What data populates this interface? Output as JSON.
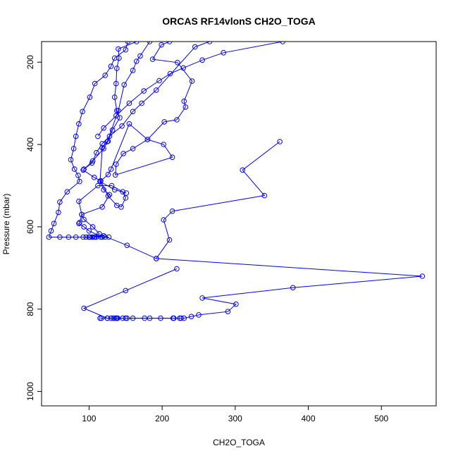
{
  "chart_data": {
    "type": "line",
    "title": "ORCAS RF14vlonS CH2O_TOGA",
    "xlabel": "CH2O_TOGA",
    "ylabel": "Pressure (mbar)",
    "xlim": [
      35,
      575
    ],
    "ylim": [
      1035,
      150
    ],
    "y_reversed": true,
    "grid": false,
    "legend": "none",
    "line_color": "#0000ff",
    "x_ticks": [
      100,
      200,
      300,
      400,
      500
    ],
    "y_ticks": [
      200,
      400,
      600,
      800,
      1000
    ],
    "x_tick_labels": [
      "100",
      "200",
      "300",
      "400",
      "500"
    ],
    "y_tick_labels": [
      "200",
      "400",
      "600",
      "800",
      "1000"
    ],
    "series": [
      {
        "values": [
          [
            153,
            150
          ],
          [
            150,
            170
          ],
          [
            135,
            190
          ],
          [
            130,
            210
          ],
          [
            122,
            232
          ],
          [
            108,
            252
          ],
          [
            101,
            285
          ],
          [
            91,
            320
          ],
          [
            86,
            350
          ],
          [
            82,
            380
          ],
          [
            79,
            410
          ],
          [
            75,
            437
          ],
          [
            80,
            460
          ],
          [
            85,
            475
          ],
          [
            87,
            490
          ],
          [
            70,
            515
          ],
          [
            60,
            540
          ],
          [
            58,
            565
          ],
          [
            52,
            592
          ],
          [
            48,
            610
          ],
          [
            45,
            625
          ],
          [
            60,
            625
          ],
          [
            72,
            625
          ],
          [
            82,
            625
          ],
          [
            92,
            625
          ],
          [
            100,
            625
          ],
          [
            108,
            625
          ],
          [
            116,
            625
          ],
          [
            122,
            625
          ],
          [
            127,
            625
          ]
        ]
      },
      {
        "values": [
          [
            165,
            150
          ],
          [
            140,
            168
          ],
          [
            141,
            190
          ],
          [
            138,
            215
          ],
          [
            137,
            252
          ],
          [
            135,
            285
          ],
          [
            138,
            318
          ],
          [
            142,
            335
          ],
          [
            132,
            365
          ],
          [
            126,
            392
          ],
          [
            120,
            410
          ],
          [
            105,
            440
          ],
          [
            92,
            462
          ],
          [
            107,
            480
          ],
          [
            116,
            488
          ],
          [
            126,
            525
          ],
          [
            138,
            548
          ],
          [
            144,
            552
          ],
          [
            150,
            530
          ],
          [
            146,
            515
          ],
          [
            131,
            500
          ],
          [
            112,
            500
          ],
          [
            86,
            538
          ],
          [
            90,
            570
          ],
          [
            93,
            582
          ],
          [
            105,
            600
          ],
          [
            114,
            617
          ],
          [
            107,
            625
          ],
          [
            101,
            625
          ],
          [
            96,
            625
          ]
        ]
      },
      {
        "values": [
          [
            183,
            150
          ],
          [
            170,
            185
          ],
          [
            165,
            198
          ],
          [
            160,
            220
          ],
          [
            148,
            255
          ],
          [
            140,
            318
          ],
          [
            125,
            393
          ],
          [
            118,
            408
          ],
          [
            115,
            490
          ],
          [
            120,
            510
          ],
          [
            128,
            522
          ],
          [
            118,
            552
          ],
          [
            90,
            570
          ],
          [
            87,
            590
          ],
          [
            86,
            592
          ],
          [
            93,
            600
          ],
          [
            100,
            610
          ],
          [
            118,
            625
          ],
          [
            110,
            625
          ],
          [
            104,
            625
          ]
        ]
      },
      {
        "values": [
          [
            210,
            150
          ],
          [
            199,
            158
          ],
          [
            187,
            193
          ],
          [
            221,
            201
          ],
          [
            241,
            246
          ],
          [
            230,
            295
          ],
          [
            232,
            309
          ],
          [
            220,
            340
          ],
          [
            203,
            345
          ],
          [
            180,
            388
          ],
          [
            160,
            410
          ],
          [
            147,
            422
          ],
          [
            137,
            448
          ],
          [
            136,
            474
          ],
          [
            214,
            431
          ],
          [
            202,
            400
          ],
          [
            180,
            388
          ],
          [
            155,
            350
          ],
          [
            130,
            460
          ],
          [
            126,
            473
          ],
          [
            115,
            490
          ],
          [
            135,
            510
          ],
          [
            151,
            518
          ]
        ]
      },
      {
        "values": [
          [
            265,
            150
          ],
          [
            245,
            163
          ],
          [
            192,
            268
          ],
          [
            172,
            300
          ],
          [
            160,
            320
          ],
          [
            145,
            355
          ],
          [
            128,
            380
          ],
          [
            118,
            398
          ],
          [
            110,
            420
          ],
          [
            104,
            445
          ],
          [
            93,
            460
          ]
        ]
      },
      {
        "values": [
          [
            365,
            150
          ],
          [
            284,
            177
          ],
          [
            255,
            195
          ],
          [
            229,
            214
          ],
          [
            211,
            228
          ],
          [
            196,
            245
          ],
          [
            175,
            270
          ],
          [
            155,
            300
          ],
          [
            137,
            330
          ],
          [
            120,
            360
          ],
          [
            112,
            380
          ]
        ]
      },
      {
        "values": [
          [
            361,
            393
          ],
          [
            310,
            462
          ],
          [
            340,
            524
          ],
          [
            214,
            562
          ],
          [
            202,
            583
          ],
          [
            210,
            632
          ],
          [
            192,
            677
          ],
          [
            152,
            645
          ],
          [
            120,
            622
          ],
          [
            104,
            625
          ],
          [
            100,
            625
          ]
        ]
      },
      {
        "values": [
          [
            192,
            677
          ],
          [
            556,
            720
          ],
          [
            379,
            748
          ],
          [
            255,
            773
          ],
          [
            301,
            788
          ],
          [
            290,
            806
          ],
          [
            250,
            814
          ],
          [
            240,
            818
          ],
          [
            230,
            822
          ],
          [
            224,
            822
          ],
          [
            216,
            822
          ],
          [
            198,
            822
          ],
          [
            183,
            822
          ],
          [
            160,
            822
          ],
          [
            152,
            822
          ],
          [
            146,
            822
          ],
          [
            139,
            822
          ],
          [
            137,
            822
          ],
          [
            135,
            822
          ],
          [
            130,
            822
          ],
          [
            125,
            822
          ],
          [
            117,
            822
          ],
          [
            115,
            822
          ]
        ]
      },
      {
        "values": [
          [
            220,
            702
          ],
          [
            150,
            755
          ],
          [
            93,
            798
          ],
          [
            125,
            822
          ],
          [
            133,
            822
          ],
          [
            138,
            822
          ],
          [
            150,
            822
          ],
          [
            176,
            822
          ],
          [
            215,
            822
          ],
          [
            226,
            822
          ]
        ]
      }
    ]
  }
}
